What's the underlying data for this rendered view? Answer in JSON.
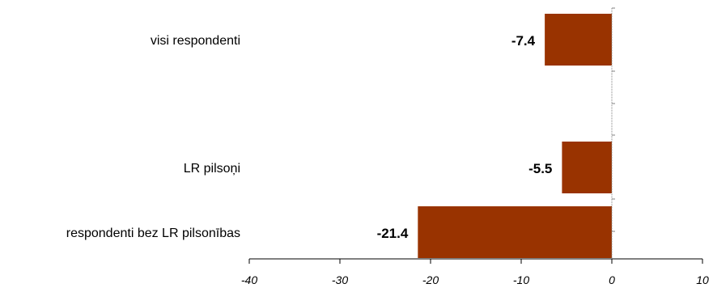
{
  "chart_data": {
    "type": "bar",
    "orientation": "horizontal",
    "categories": [
      "visi respondenti",
      "LR pilsoņi",
      "respondenti bez LR pilsonības"
    ],
    "values": [
      -7.4,
      -5.5,
      -21.4
    ],
    "data_labels": [
      "-7.4",
      "-5.5",
      "-21.4"
    ],
    "xlim": [
      -40,
      10
    ],
    "xticks": [
      -40,
      -30,
      -20,
      -10,
      0,
      10
    ],
    "xtick_labels": [
      "-40",
      "-30",
      "-20",
      "-10",
      "0",
      "10"
    ],
    "title": "",
    "xlabel": "",
    "ylabel": "",
    "grid": false,
    "legend": "none",
    "bar_color": "#993300"
  }
}
